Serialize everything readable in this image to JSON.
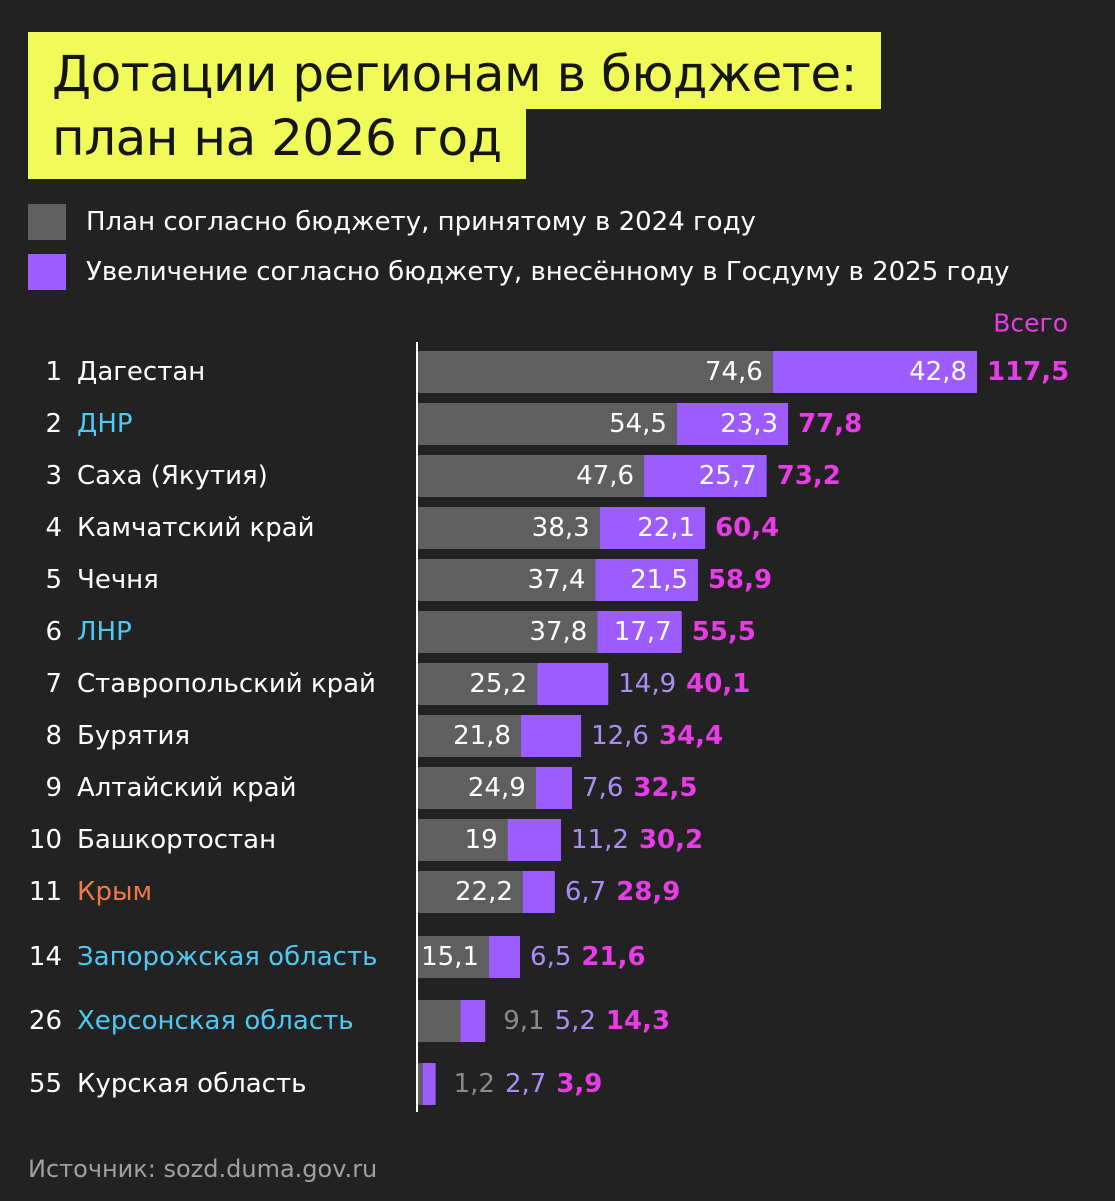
{
  "title": {
    "line1": "Дотации регионам в бюджете:",
    "line2": "план на 2026 год"
  },
  "legend": [
    {
      "label": "План согласно бюджету, принятому в 2024 году",
      "color": "#5f5f5f"
    },
    {
      "label": "Увеличение согласно бюджету, внесённому в Госдуму в 2025 году",
      "color": "#9c5cff"
    }
  ],
  "colors": {
    "background": "#222222",
    "title_bg": "#f0fa59",
    "base": "#5f5f5f",
    "increase": "#9c5cff",
    "total": "#e83ce6",
    "region_default": "#ffffff",
    "region_new": "#4ec9f2",
    "region_crimea": "#f07a45",
    "outside_base_text": "#8a8a8a",
    "outside_increase_text": "#a98ff5"
  },
  "chart_data": {
    "type": "bar",
    "orientation": "horizontal",
    "stacked": true,
    "total_header": "Всего",
    "series": [
      {
        "name": "План согласно бюджету, принятому в 2024 году",
        "key": "base"
      },
      {
        "name": "Увеличение согласно бюджету, внесённому в Госдуму в 2025 году",
        "key": "increase"
      }
    ],
    "rows": [
      {
        "rank": "1",
        "region": "Дагестан",
        "group": "default",
        "base": 74.6,
        "increase": 42.8,
        "total": 117.5,
        "base_label": "74,6",
        "increase_label": "42,8",
        "total_label": "117,5"
      },
      {
        "rank": "2",
        "region": "ДНР",
        "group": "new",
        "base": 54.5,
        "increase": 23.3,
        "total": 77.8,
        "base_label": "54,5",
        "increase_label": "23,3",
        "total_label": "77,8"
      },
      {
        "rank": "3",
        "region": "Саха (Якутия)",
        "group": "default",
        "base": 47.6,
        "increase": 25.7,
        "total": 73.2,
        "base_label": "47,6",
        "increase_label": "25,7",
        "total_label": "73,2"
      },
      {
        "rank": "4",
        "region": "Камчатский край",
        "group": "default",
        "base": 38.3,
        "increase": 22.1,
        "total": 60.4,
        "base_label": "38,3",
        "increase_label": "22,1",
        "total_label": "60,4"
      },
      {
        "rank": "5",
        "region": "Чечня",
        "group": "default",
        "base": 37.4,
        "increase": 21.5,
        "total": 58.9,
        "base_label": "37,4",
        "increase_label": "21,5",
        "total_label": "58,9"
      },
      {
        "rank": "6",
        "region": "ЛНР",
        "group": "new",
        "base": 37.8,
        "increase": 17.7,
        "total": 55.5,
        "base_label": "37,8",
        "increase_label": "17,7",
        "total_label": "55,5"
      },
      {
        "rank": "7",
        "region": "Ставропольский край",
        "group": "default",
        "base": 25.2,
        "increase": 14.9,
        "total": 40.1,
        "base_label": "25,2",
        "increase_label": "14,9",
        "total_label": "40,1"
      },
      {
        "rank": "8",
        "region": "Бурятия",
        "group": "default",
        "base": 21.8,
        "increase": 12.6,
        "total": 34.4,
        "base_label": "21,8",
        "increase_label": "12,6",
        "total_label": "34,4"
      },
      {
        "rank": "9",
        "region": "Алтайский край",
        "group": "default",
        "base": 24.9,
        "increase": 7.6,
        "total": 32.5,
        "base_label": "24,9",
        "increase_label": "7,6",
        "total_label": "32,5"
      },
      {
        "rank": "10",
        "region": "Башкортостан",
        "group": "default",
        "base": 19,
        "increase": 11.2,
        "total": 30.2,
        "base_label": "19",
        "increase_label": "11,2",
        "total_label": "30,2"
      },
      {
        "rank": "11",
        "region": "Крым",
        "group": "crimea",
        "base": 22.2,
        "increase": 6.7,
        "total": 28.9,
        "base_label": "22,2",
        "increase_label": "6,7",
        "total_label": "28,9"
      },
      {
        "rank": "14",
        "region": "Запорожская область",
        "group": "new",
        "base": 15.1,
        "increase": 6.5,
        "total": 21.6,
        "base_label": "15,1",
        "increase_label": "6,5",
        "total_label": "21,6"
      },
      {
        "rank": "26",
        "region": "Херсонская область",
        "group": "new",
        "base": 9.1,
        "increase": 5.2,
        "total": 14.3,
        "base_label": "9,1",
        "increase_label": "5,2",
        "total_label": "14,3"
      },
      {
        "rank": "55",
        "region": "Курская область",
        "group": "default",
        "base": 1.2,
        "increase": 2.7,
        "total": 3.9,
        "base_label": "1,2",
        "increase_label": "2,7",
        "total_label": "3,9"
      }
    ]
  },
  "source": "Источник: sozd.duma.gov.ru"
}
